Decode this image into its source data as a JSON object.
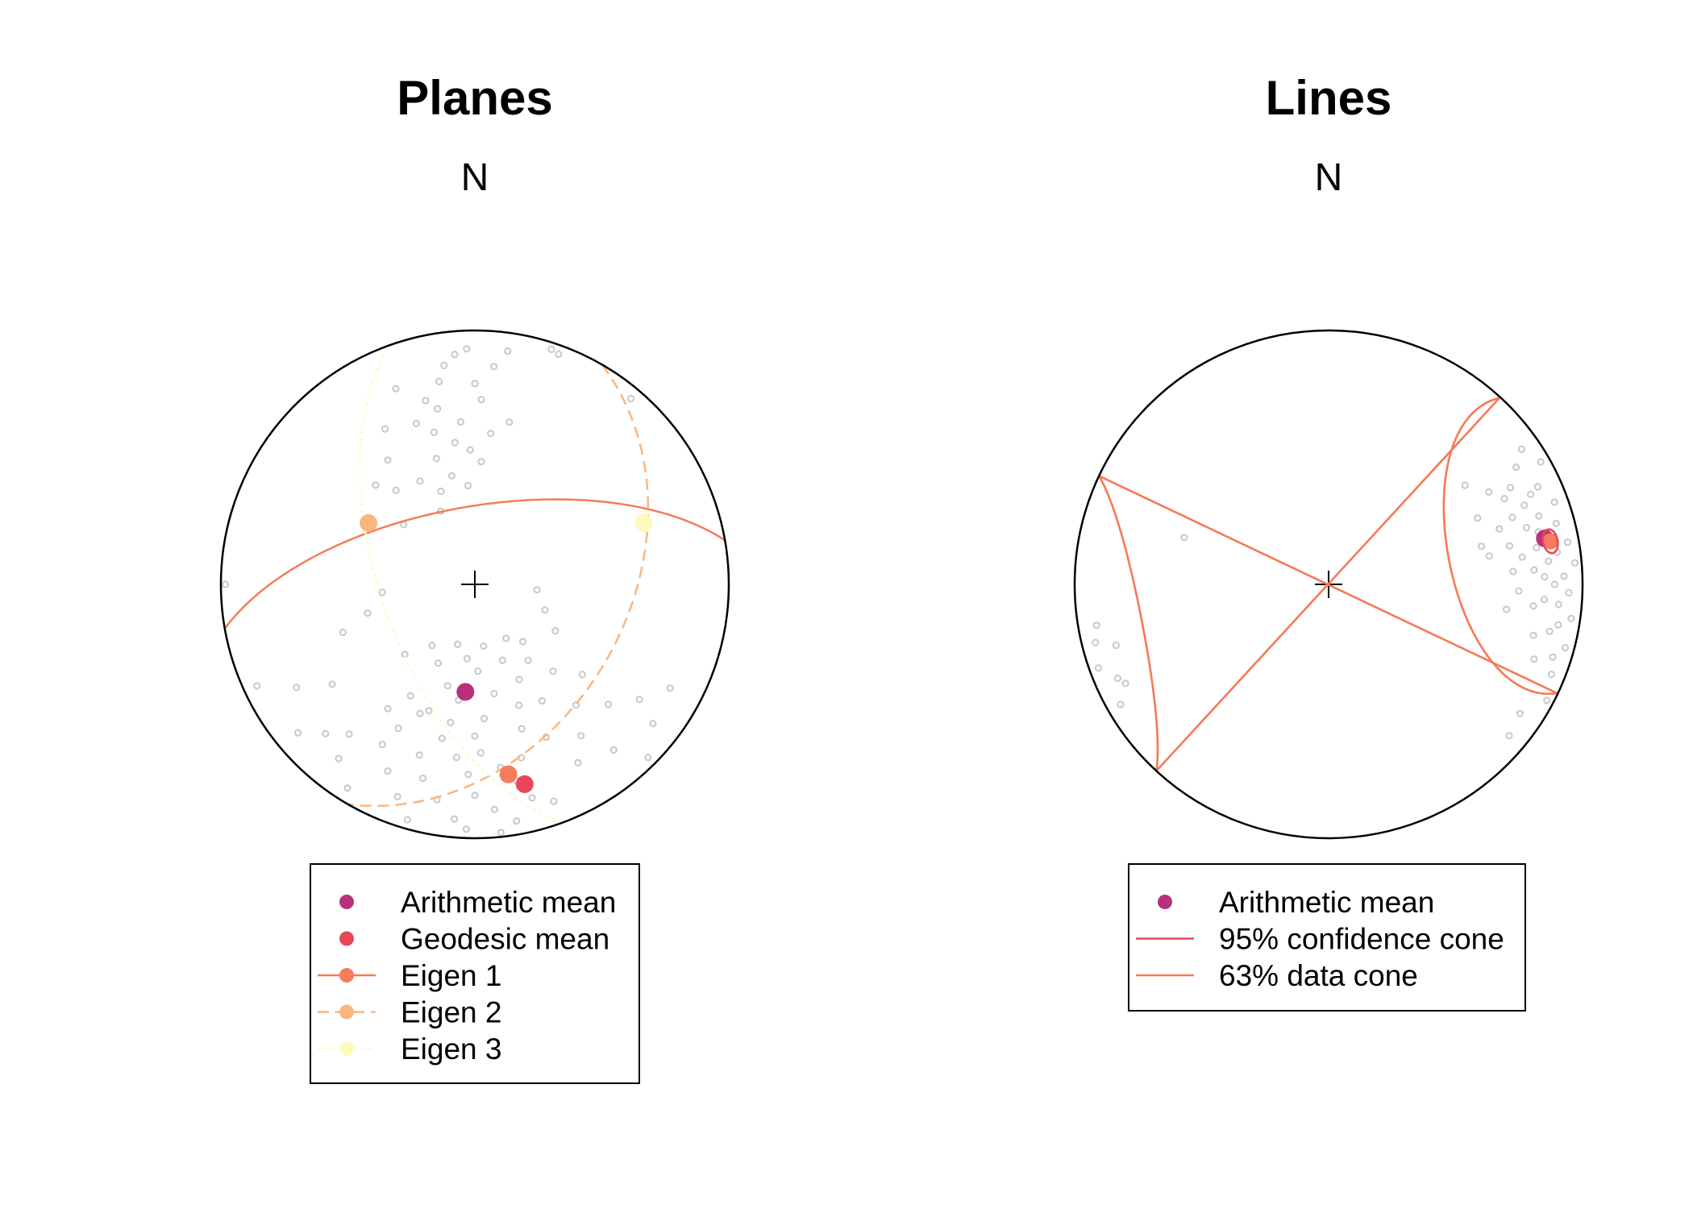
{
  "chart_data": [
    {
      "type": "scatter",
      "projection": "equal-area stereonet, lower hemisphere",
      "title": "Planes",
      "north_label": "N",
      "grid": false,
      "legend_position": "bottom",
      "data_marker": {
        "shape": "open circle",
        "color": "#c8c8c8"
      },
      "poles": [
        {
          "az": 355,
          "dip": 10
        },
        {
          "az": 352,
          "dip": 14
        },
        {
          "az": 358,
          "dip": 8
        },
        {
          "az": 350,
          "dip": 20
        },
        {
          "az": 345,
          "dip": 26
        },
        {
          "az": 340,
          "dip": 33
        },
        {
          "az": 348,
          "dip": 30
        },
        {
          "az": 355,
          "dip": 36
        },
        {
          "az": 0,
          "dip": 22
        },
        {
          "az": 5,
          "dip": 15
        },
        {
          "az": 8,
          "dip": 8
        },
        {
          "az": 2,
          "dip": 28
        },
        {
          "az": 338,
          "dip": 18
        },
        {
          "az": 330,
          "dip": 30
        },
        {
          "az": 325,
          "dip": 40
        },
        {
          "az": 320,
          "dip": 50
        },
        {
          "az": 315,
          "dip": 44
        },
        {
          "az": 343,
          "dip": 47
        },
        {
          "az": 352,
          "dip": 43
        },
        {
          "az": 358,
          "dip": 46
        },
        {
          "az": 6,
          "dip": 40
        },
        {
          "az": 348,
          "dip": 54
        },
        {
          "az": 340,
          "dip": 58
        },
        {
          "az": 310,
          "dip": 60
        },
        {
          "az": 335,
          "dip": 64
        },
        {
          "az": 356,
          "dip": 58
        },
        {
          "az": 3,
          "dip": 50
        },
        {
          "az": 12,
          "dip": 35
        },
        {
          "az": 345,
          "dip": 38
        },
        {
          "az": 332,
          "dip": 52
        },
        {
          "az": 20,
          "dip": 4
        },
        {
          "az": 18,
          "dip": 3
        },
        {
          "az": 40,
          "dip": 5
        },
        {
          "az": 160,
          "dip": 10
        },
        {
          "az": 165,
          "dip": 14
        },
        {
          "az": 170,
          "dip": 6
        },
        {
          "az": 175,
          "dip": 12
        },
        {
          "az": 180,
          "dip": 18
        },
        {
          "az": 185,
          "dip": 8
        },
        {
          "az": 190,
          "dip": 15
        },
        {
          "az": 195,
          "dip": 22
        },
        {
          "az": 200,
          "dip": 12
        },
        {
          "az": 205,
          "dip": 20
        },
        {
          "az": 210,
          "dip": 28
        },
        {
          "az": 168,
          "dip": 22
        },
        {
          "az": 172,
          "dip": 28
        },
        {
          "az": 178,
          "dip": 34
        },
        {
          "az": 182,
          "dip": 26
        },
        {
          "az": 186,
          "dip": 32
        },
        {
          "az": 192,
          "dip": 38
        },
        {
          "az": 198,
          "dip": 30
        },
        {
          "az": 203,
          "dip": 44
        },
        {
          "az": 208,
          "dip": 36
        },
        {
          "az": 215,
          "dip": 40
        },
        {
          "az": 220,
          "dip": 24
        },
        {
          "az": 225,
          "dip": 18
        },
        {
          "az": 230,
          "dip": 10
        },
        {
          "az": 150,
          "dip": 20
        },
        {
          "az": 145,
          "dip": 28
        },
        {
          "az": 140,
          "dip": 16
        },
        {
          "az": 155,
          "dip": 34
        },
        {
          "az": 162,
          "dip": 40
        },
        {
          "az": 176,
          "dip": 46
        },
        {
          "az": 188,
          "dip": 52
        },
        {
          "az": 195,
          "dip": 56
        },
        {
          "az": 205,
          "dip": 62
        },
        {
          "az": 215,
          "dip": 66
        },
        {
          "az": 225,
          "dip": 58
        },
        {
          "az": 170,
          "dip": 54
        },
        {
          "az": 160,
          "dip": 48
        },
        {
          "az": 150,
          "dip": 46
        },
        {
          "az": 140,
          "dip": 38
        },
        {
          "az": 132,
          "dip": 30
        },
        {
          "az": 125,
          "dip": 22
        },
        {
          "az": 118,
          "dip": 14
        },
        {
          "az": 178,
          "dip": 62
        },
        {
          "az": 186,
          "dip": 66
        },
        {
          "az": 196,
          "dip": 70
        },
        {
          "az": 235,
          "dip": 32
        },
        {
          "az": 240,
          "dip": 20
        },
        {
          "az": 245,
          "dip": 6
        },
        {
          "az": 212,
          "dip": 6
        },
        {
          "az": 218,
          "dip": 14
        },
        {
          "az": 182,
          "dip": 4
        },
        {
          "az": 174,
          "dip": 2
        },
        {
          "az": 196,
          "dip": 4
        },
        {
          "az": 165,
          "dip": 30
        },
        {
          "az": 155,
          "dip": 56
        },
        {
          "az": 145,
          "dip": 60
        },
        {
          "az": 138,
          "dip": 52
        },
        {
          "az": 130,
          "dip": 44
        },
        {
          "az": 160,
          "dip": 64
        },
        {
          "az": 172,
          "dip": 70
        },
        {
          "az": 210,
          "dip": 48
        },
        {
          "az": 200,
          "dip": 46
        },
        {
          "az": 190,
          "dip": 44
        },
        {
          "az": 180,
          "dip": 40
        },
        {
          "az": 120,
          "dip": 60
        },
        {
          "az": 110,
          "dip": 66
        },
        {
          "az": 95,
          "dip": 70
        },
        {
          "az": 135,
          "dip": 4
        },
        {
          "az": 128,
          "dip": 12
        },
        {
          "az": 250,
          "dip": 44
        },
        {
          "az": 255,
          "dip": 54
        },
        {
          "az": 265,
          "dip": 60
        },
        {
          "az": 270,
          "dip": 2
        },
        {
          "az": 150,
          "dip": 70
        },
        {
          "az": 140,
          "dip": 66
        }
      ],
      "arithmetic_mean": {
        "az": 185,
        "dip": 55
      },
      "geodesic_mean": {
        "az": 166,
        "dip": 20
      },
      "eigenvectors": [
        {
          "name": "Eigen 1",
          "az": 170,
          "dip": 25,
          "line": "solid"
        },
        {
          "name": "Eigen 2",
          "az": 300,
          "dip": 50,
          "line": "dashed"
        },
        {
          "name": "Eigen 3",
          "az": 70,
          "dip": 30,
          "line": "dotted"
        }
      ],
      "colors": {
        "arithmetic_mean": "#b8317a",
        "geodesic_mean": "#e8475b",
        "eigen_1": "#f57b5a",
        "eigen_2": "#fbb67e",
        "eigen_3": "#fcfbbc",
        "data": "#c8c8c8"
      },
      "legend": [
        {
          "label": "Arithmetic mean",
          "marker": "point",
          "line": "none",
          "color": "#b8317a"
        },
        {
          "label": "Geodesic mean",
          "marker": "point",
          "line": "none",
          "color": "#e8475b"
        },
        {
          "label": "Eigen 1",
          "marker": "point",
          "line": "solid",
          "color": "#f57b5a"
        },
        {
          "label": "Eigen 2",
          "marker": "point",
          "line": "dashed",
          "color": "#fbb67e"
        },
        {
          "label": "Eigen 3",
          "marker": "point",
          "line": "dotted",
          "color": "#fcfbbc"
        }
      ]
    },
    {
      "type": "scatter",
      "projection": "equal-area stereonet, lower hemisphere",
      "title": "Lines",
      "north_label": "N",
      "grid": false,
      "legend_position": "bottom",
      "data_marker": {
        "shape": "open circle",
        "color": "#c8c8c8"
      },
      "lines": [
        {
          "az": 55,
          "dip": 8
        },
        {
          "az": 60,
          "dip": 4
        },
        {
          "az": 65,
          "dip": 10
        },
        {
          "az": 70,
          "dip": 6
        },
        {
          "az": 72,
          "dip": 14
        },
        {
          "az": 75,
          "dip": 8
        },
        {
          "az": 78,
          "dip": 12
        },
        {
          "az": 80,
          "dip": 5
        },
        {
          "az": 82,
          "dip": 10
        },
        {
          "az": 85,
          "dip": 3
        },
        {
          "az": 88,
          "dip": 8
        },
        {
          "az": 90,
          "dip": 12
        },
        {
          "az": 92,
          "dip": 6
        },
        {
          "az": 95,
          "dip": 10
        },
        {
          "az": 98,
          "dip": 4
        },
        {
          "az": 100,
          "dip": 9
        },
        {
          "az": 102,
          "dip": 12
        },
        {
          "az": 105,
          "dip": 4
        },
        {
          "az": 108,
          "dip": 8
        },
        {
          "az": 112,
          "dip": 6
        },
        {
          "az": 118,
          "dip": 3
        },
        {
          "az": 68,
          "dip": 18
        },
        {
          "az": 62,
          "dip": 20
        },
        {
          "az": 70,
          "dip": 24
        },
        {
          "az": 74,
          "dip": 20
        },
        {
          "az": 76,
          "dip": 16
        },
        {
          "az": 80,
          "dip": 18
        },
        {
          "az": 84,
          "dip": 14
        },
        {
          "az": 86,
          "dip": 20
        },
        {
          "az": 66,
          "dip": 14
        },
        {
          "az": 58,
          "dip": 14
        },
        {
          "az": 64,
          "dip": 24
        },
        {
          "az": 72,
          "dip": 30
        },
        {
          "az": 78,
          "dip": 28
        },
        {
          "az": 82,
          "dip": 24
        },
        {
          "az": 88,
          "dip": 16
        },
        {
          "az": 94,
          "dip": 16
        },
        {
          "az": 96,
          "dip": 20
        },
        {
          "az": 104,
          "dip": 18
        },
        {
          "az": 110,
          "dip": 15
        },
        {
          "az": 54,
          "dip": 34
        },
        {
          "az": 66,
          "dip": 36
        },
        {
          "az": 76,
          "dip": 38
        },
        {
          "az": 80,
          "dip": 36
        },
        {
          "az": 98,
          "dip": 30
        },
        {
          "az": 124,
          "dip": 10
        },
        {
          "az": 130,
          "dip": 8
        },
        {
          "az": 86,
          "dip": 28
        },
        {
          "az": 92,
          "dip": 26
        },
        {
          "az": 60,
          "dip": 28
        },
        {
          "az": 288,
          "dip": 40
        },
        {
          "az": 260,
          "dip": 8
        },
        {
          "az": 254,
          "dip": 14
        },
        {
          "az": 250,
          "dip": 4
        },
        {
          "az": 246,
          "dip": 10
        },
        {
          "az": 244,
          "dip": 12
        },
        {
          "az": 240,
          "dip": 6
        },
        {
          "az": 256,
          "dip": 6
        }
      ],
      "arithmetic_mean": {
        "az": 78,
        "dip": 14
      },
      "mean_lineation": {
        "az": 79,
        "dip": 12
      },
      "confidence_cone_95": {
        "center": {
          "az": 79,
          "dip": 12
        },
        "half_angle_deg": 3
      },
      "data_cone_63": {
        "center": {
          "az": 79,
          "dip": 12
        },
        "half_angle_deg": 38
      },
      "colors": {
        "arithmetic_mean": "#b8317a",
        "confidence_cone_95": "#e8475b",
        "data_cone_63": "#f57b5a",
        "data": "#c8c8c8"
      },
      "legend": [
        {
          "label": "Arithmetic mean",
          "marker": "point",
          "line": "none",
          "color": "#b8317a"
        },
        {
          "label": "95% confidence cone",
          "marker": "none",
          "line": "solid",
          "color": "#e8475b"
        },
        {
          "label": "63% data cone",
          "marker": "none",
          "line": "solid",
          "color": "#f57b5a"
        }
      ]
    }
  ]
}
